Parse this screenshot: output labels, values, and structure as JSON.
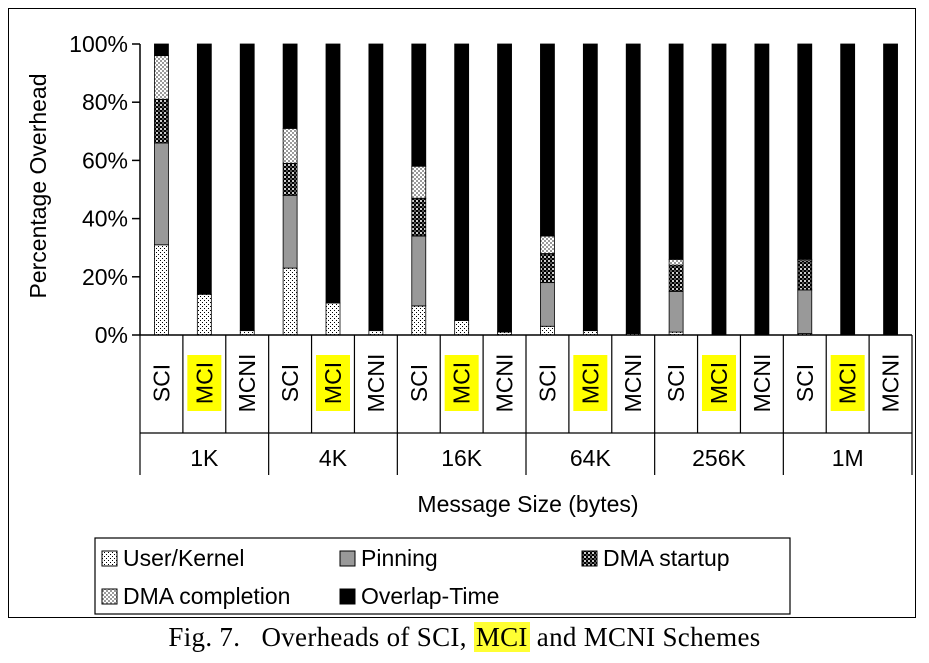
{
  "chart_data": {
    "type": "bar",
    "stacked": true,
    "percent": true,
    "ylabel": "Percentage Overhead",
    "xlabel": "Message Size (bytes)",
    "ylim": [
      0,
      100
    ],
    "y_ticks": [
      "0%",
      "20%",
      "40%",
      "60%",
      "80%",
      "100%"
    ],
    "grid": false,
    "legend_position": "bottom",
    "groups": [
      "1K",
      "4K",
      "16K",
      "64K",
      "256K",
      "1M"
    ],
    "schemes": [
      "SCI",
      "MCI",
      "MCNI"
    ],
    "highlight_scheme": "MCI",
    "highlight_color": "#ffff00",
    "series": [
      {
        "name": "User/Kernel",
        "pattern": "dotted",
        "values": [
          31,
          14,
          1.5,
          23,
          11,
          1.5,
          10,
          5,
          1,
          3,
          1.5,
          0.5,
          1,
          0,
          0,
          0.5,
          0,
          0
        ]
      },
      {
        "name": "Pinning",
        "color": "#999999",
        "values": [
          35,
          0,
          0,
          25,
          0,
          0,
          24,
          0,
          0,
          15,
          0,
          0,
          14,
          0,
          0,
          15,
          0,
          0
        ]
      },
      {
        "name": "DMA startup",
        "pattern": "dark-checker",
        "values": [
          15,
          0,
          0,
          11,
          0,
          0,
          13,
          0,
          0,
          10,
          0,
          0,
          9,
          0,
          0,
          10,
          0,
          0
        ]
      },
      {
        "name": "DMA completion",
        "pattern": "light-checker",
        "values": [
          15,
          0,
          0,
          12,
          0,
          0,
          11,
          0,
          0,
          6,
          0,
          0,
          2,
          0,
          0,
          0.5,
          0,
          0
        ]
      },
      {
        "name": "Overlap-Time",
        "color": "#000000",
        "values": [
          4,
          86,
          98.5,
          29,
          89,
          98.5,
          42,
          95,
          99,
          66,
          98.5,
          99.5,
          74,
          100,
          100,
          74,
          100,
          100
        ]
      }
    ]
  },
  "caption": {
    "prefix": "Fig. 7.",
    "text_before": "Overheads of SCI,",
    "highlight": "MCI",
    "text_after": "and MCNI Schemes"
  }
}
